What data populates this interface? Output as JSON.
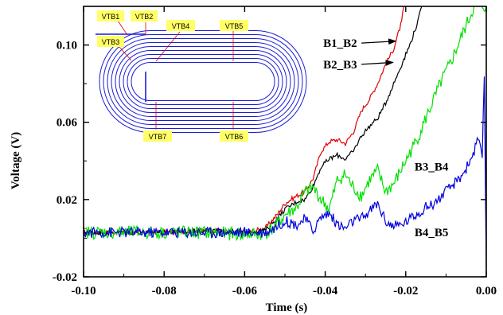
{
  "chart_data": {
    "type": "line",
    "xlabel": "Time (s)",
    "ylabel": "Voltage (V)",
    "xlim": [
      -0.1,
      0.0
    ],
    "ylim": [
      -0.02,
      0.12
    ],
    "xticks": [
      -0.1,
      -0.08,
      -0.06,
      -0.04,
      -0.02,
      0.0
    ],
    "xtick_labels": [
      "-0.10",
      "-0.08",
      "-0.06",
      "-0.04",
      "-0.02",
      "0.00"
    ],
    "yticks": [
      -0.02,
      0.02,
      0.06,
      0.1
    ],
    "ytick_labels": [
      "-0.02",
      "0.02",
      "0.06",
      "0.10"
    ],
    "series": [
      {
        "name": "B1_B2",
        "color": "#e00000",
        "x": [
          -0.1,
          -0.09,
          -0.08,
          -0.07,
          -0.06,
          -0.055,
          -0.052,
          -0.05,
          -0.047,
          -0.045,
          -0.043,
          -0.041,
          -0.039,
          -0.037,
          -0.035,
          -0.033,
          -0.031,
          -0.029,
          -0.027,
          -0.025,
          -0.023,
          -0.021,
          -0.0205
        ],
        "y": [
          0.003,
          0.003,
          0.003,
          0.004,
          0.003,
          0.005,
          0.012,
          0.018,
          0.022,
          0.024,
          0.031,
          0.045,
          0.05,
          0.051,
          0.049,
          0.055,
          0.066,
          0.072,
          0.08,
          0.09,
          0.098,
          0.112,
          0.12
        ]
      },
      {
        "name": "B2_B3",
        "color": "#000000",
        "x": [
          -0.1,
          -0.09,
          -0.08,
          -0.07,
          -0.06,
          -0.055,
          -0.052,
          -0.05,
          -0.047,
          -0.045,
          -0.043,
          -0.041,
          -0.039,
          -0.037,
          -0.035,
          -0.033,
          -0.031,
          -0.029,
          -0.027,
          -0.025,
          -0.023,
          -0.021,
          -0.019,
          -0.017,
          -0.016
        ],
        "y": [
          0.003,
          0.003,
          0.003,
          0.004,
          0.003,
          0.004,
          0.01,
          0.015,
          0.019,
          0.02,
          0.027,
          0.037,
          0.041,
          0.043,
          0.041,
          0.045,
          0.053,
          0.058,
          0.062,
          0.07,
          0.08,
          0.09,
          0.1,
          0.112,
          0.12
        ]
      },
      {
        "name": "B3_B4",
        "color": "#00e000",
        "x": [
          -0.1,
          -0.09,
          -0.08,
          -0.07,
          -0.06,
          -0.055,
          -0.052,
          -0.05,
          -0.047,
          -0.045,
          -0.043,
          -0.041,
          -0.039,
          -0.037,
          -0.035,
          -0.033,
          -0.031,
          -0.029,
          -0.027,
          -0.025,
          -0.023,
          -0.021,
          -0.019,
          -0.017,
          -0.015,
          -0.013,
          -0.011,
          -0.009,
          -0.007,
          -0.005,
          -0.003,
          -0.001,
          0.0
        ],
        "y": [
          0.003,
          0.003,
          0.003,
          0.003,
          0.002,
          0.002,
          0.007,
          0.012,
          0.016,
          0.024,
          0.026,
          0.02,
          0.015,
          0.03,
          0.033,
          0.026,
          0.022,
          0.03,
          0.035,
          0.024,
          0.028,
          0.036,
          0.044,
          0.052,
          0.062,
          0.072,
          0.082,
          0.09,
          0.1,
          0.11,
          0.12,
          0.12,
          0.12
        ]
      },
      {
        "name": "B4_B5",
        "color": "#0000e0",
        "x": [
          -0.1,
          -0.09,
          -0.08,
          -0.07,
          -0.06,
          -0.055,
          -0.052,
          -0.05,
          -0.047,
          -0.045,
          -0.043,
          -0.041,
          -0.039,
          -0.037,
          -0.035,
          -0.033,
          -0.031,
          -0.029,
          -0.027,
          -0.025,
          -0.023,
          -0.021,
          -0.019,
          -0.017,
          -0.015,
          -0.013,
          -0.011,
          -0.009,
          -0.007,
          -0.005,
          -0.003,
          -0.002,
          -0.001,
          -0.0005,
          0.0
        ],
        "y": [
          0.003,
          0.003,
          0.003,
          0.003,
          0.003,
          0.003,
          0.006,
          0.009,
          0.007,
          0.01,
          0.004,
          0.011,
          0.013,
          0.007,
          0.005,
          0.009,
          0.01,
          0.014,
          0.018,
          0.009,
          0.006,
          0.007,
          0.01,
          0.013,
          0.016,
          0.018,
          0.022,
          0.026,
          0.03,
          0.036,
          0.045,
          0.052,
          0.04,
          0.085,
          -0.018
        ]
      }
    ]
  },
  "series_labels": [
    {
      "text": "B1_B2",
      "lx": -0.0405,
      "ly": 0.101,
      "ax": -0.0225,
      "ay": 0.102
    },
    {
      "text": "B2_B3",
      "lx": -0.0405,
      "ly": 0.09,
      "ax": -0.0232,
      "ay": 0.091
    },
    {
      "text": "B3_B4",
      "lx": -0.0178,
      "ly": 0.037
    },
    {
      "text": "B4_B5",
      "lx": -0.0178,
      "ly": 0.003
    }
  ],
  "inset": {
    "labels": [
      "VTB1",
      "VTB2",
      "VTB3",
      "VTB4",
      "VTB5",
      "VTB6",
      "VTB7"
    ],
    "label_bg": "#ffff66",
    "coil_color": "#1c1cd6"
  }
}
